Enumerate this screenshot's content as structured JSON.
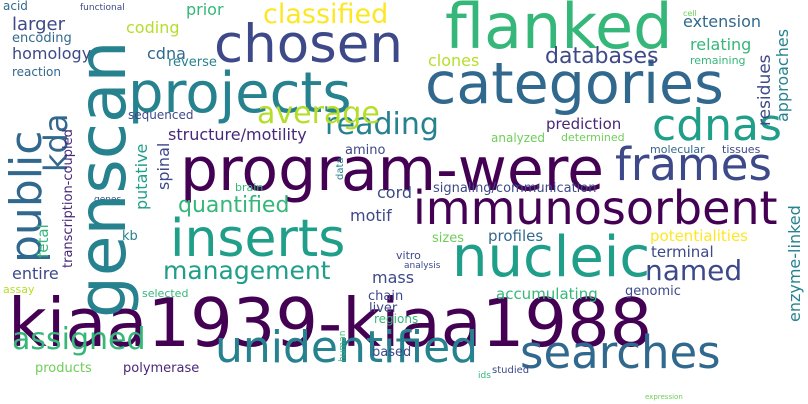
{
  "palette": {
    "dark_purple": "#440154",
    "purple": "#482878",
    "indigo": "#3e4989",
    "blue": "#31688e",
    "teal_blue": "#26828e",
    "teal": "#1f9e89",
    "green": "#35b779",
    "light_green": "#6ece58",
    "lime": "#b5de2b",
    "yellow": "#fde725"
  },
  "words": [
    {
      "text": "kiaa1939-kiaa1988",
      "color": "#440154"
    },
    {
      "text": "genscan",
      "color": "#26828e"
    },
    {
      "text": "program-were",
      "color": "#440154"
    },
    {
      "text": "categories",
      "color": "#31688e"
    },
    {
      "text": "projects",
      "color": "#26828e"
    },
    {
      "text": "nucleic",
      "color": "#1f9e89"
    },
    {
      "text": "chosen",
      "color": "#3e4989"
    },
    {
      "text": "flanked",
      "color": "#35b779"
    },
    {
      "text": "immunosorbent",
      "color": "#440154"
    },
    {
      "text": "inserts",
      "color": "#1f9e89"
    },
    {
      "text": "unidentified",
      "color": "#26828e"
    },
    {
      "text": "searches",
      "color": "#31688e"
    },
    {
      "text": "frames",
      "color": "#3e4989"
    },
    {
      "text": "cdnas",
      "color": "#1f9e89"
    },
    {
      "text": "public",
      "color": "#31688e"
    },
    {
      "text": "assigned",
      "color": "#35b779"
    },
    {
      "text": "reading",
      "color": "#26828e"
    },
    {
      "text": "average",
      "color": "#b5de2b"
    },
    {
      "text": "management",
      "color": "#1f9e89"
    },
    {
      "text": "classified",
      "color": "#fde725"
    },
    {
      "text": "kda",
      "color": "#31688e"
    },
    {
      "text": "quantified",
      "color": "#35b779"
    },
    {
      "text": "named",
      "color": "#3e4989"
    },
    {
      "text": "databases",
      "color": "#3e4989"
    },
    {
      "text": "relating",
      "color": "#35b779"
    },
    {
      "text": "extension",
      "color": "#31688e"
    },
    {
      "text": "larger",
      "color": "#3e4989"
    },
    {
      "text": "homology",
      "color": "#3e4989"
    },
    {
      "text": "coding",
      "color": "#b5de2b"
    },
    {
      "text": "prior",
      "color": "#35b779"
    },
    {
      "text": "cdna",
      "color": "#31688e"
    },
    {
      "text": "clones",
      "color": "#b5de2b"
    },
    {
      "text": "structure/motility",
      "color": "#482878"
    },
    {
      "text": "prediction",
      "color": "#482878"
    },
    {
      "text": "residues",
      "color": "#3e4989"
    },
    {
      "text": "approaches",
      "color": "#26828e"
    },
    {
      "text": "enzyme-linked",
      "color": "#26828e"
    },
    {
      "text": "potentialities",
      "color": "#fde725"
    },
    {
      "text": "terminal",
      "color": "#3e4989"
    },
    {
      "text": "profiles",
      "color": "#31688e"
    },
    {
      "text": "accumulating",
      "color": "#35b779"
    },
    {
      "text": "entire",
      "color": "#3e4989"
    },
    {
      "text": "mass",
      "color": "#3e4989"
    },
    {
      "text": "motif",
      "color": "#3e4989"
    },
    {
      "text": "cord",
      "color": "#3e4989"
    },
    {
      "text": "putative",
      "color": "#1f9e89"
    },
    {
      "text": "spinal",
      "color": "#3e4989"
    },
    {
      "text": "signaling/communication",
      "color": "#3e4989"
    },
    {
      "text": "transcription-coupled",
      "color": "#482878"
    },
    {
      "text": "fetal",
      "color": "#35b779"
    },
    {
      "text": "kb",
      "color": "#26828e"
    },
    {
      "text": "sizes",
      "color": "#6ece58"
    },
    {
      "text": "chain",
      "color": "#3e4989"
    },
    {
      "text": "liver",
      "color": "#3e4989"
    },
    {
      "text": "genomic",
      "color": "#3e4989"
    },
    {
      "text": "regions",
      "color": "#35b779"
    },
    {
      "text": "based",
      "color": "#3e4989"
    },
    {
      "text": "products",
      "color": "#6ece58"
    },
    {
      "text": "polymerase",
      "color": "#482878"
    },
    {
      "text": "selected",
      "color": "#35b779"
    },
    {
      "text": "assay",
      "color": "#b5de2b"
    },
    {
      "text": "acid",
      "color": "#31688e"
    },
    {
      "text": "encoding",
      "color": "#31688e"
    },
    {
      "text": "reaction",
      "color": "#31688e"
    },
    {
      "text": "reverse",
      "color": "#26828e"
    },
    {
      "text": "sequenced",
      "color": "#3e4989"
    },
    {
      "text": "amino",
      "color": "#3e4989"
    },
    {
      "text": "analyzed",
      "color": "#6ece58"
    },
    {
      "text": "determined",
      "color": "#6ece58"
    },
    {
      "text": "molecular",
      "color": "#31688e"
    },
    {
      "text": "tissues",
      "color": "#3e4989"
    },
    {
      "text": "remaining",
      "color": "#35b779"
    },
    {
      "text": "brain",
      "color": "#35b779"
    },
    {
      "text": "data",
      "color": "#26828e"
    },
    {
      "text": "vitro",
      "color": "#3e4989"
    },
    {
      "text": "analysis",
      "color": "#3e4989"
    },
    {
      "text": "genes",
      "color": "#3e4989"
    },
    {
      "text": "functional",
      "color": "#3e4989"
    },
    {
      "text": "studied",
      "color": "#3e4989"
    },
    {
      "text": "human",
      "color": "#35b779"
    },
    {
      "text": "cell",
      "color": "#6ece58"
    },
    {
      "text": "expression",
      "color": "#6ece58"
    },
    {
      "text": "ids",
      "color": "#35b779"
    }
  ]
}
